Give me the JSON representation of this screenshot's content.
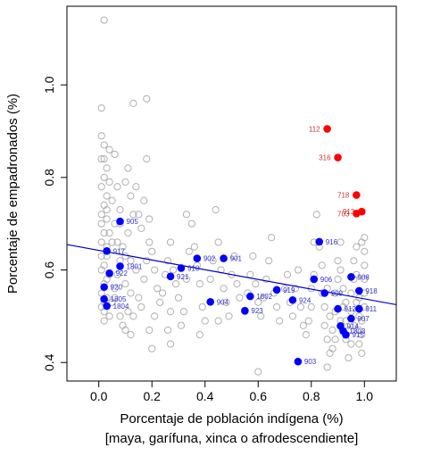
{
  "chart_data": {
    "type": "scatter",
    "xlabel": "Porcentaje de población indígena (%)",
    "xlabel2": "[maya, garífuna, xinca o afrodescendiente]",
    "ylabel": "Porcentaje de empadronados (%)",
    "xlim": [
      -0.12,
      1.12
    ],
    "ylim": [
      0.36,
      1.17
    ],
    "x_ticks": [
      0.0,
      0.2,
      0.4,
      0.6,
      0.8,
      1.0
    ],
    "x_tick_labels": [
      "0.0",
      "0.2",
      "0.4",
      "0.6",
      "0.8",
      "1.0"
    ],
    "y_ticks": [
      0.4,
      0.6,
      0.8,
      1.0
    ],
    "y_tick_labels": [
      "0.4",
      "0.6",
      "0.8",
      "1.0"
    ],
    "grid": false,
    "colors": {
      "background_points": "#b0b0b0",
      "highlight_blue": "#0000ff",
      "highlight_red": "#ff0000",
      "trend_line": "#0000cc",
      "label_blue": "#3333cc",
      "label_red": "#cc3333"
    },
    "trend_line": {
      "x1": -0.12,
      "y1": 0.655,
      "x2": 1.12,
      "y2": 0.525
    },
    "background_points": [
      [
        0.02,
        1.14
      ],
      [
        0.01,
        0.95
      ],
      [
        0.01,
        0.89
      ],
      [
        0.02,
        0.87
      ],
      [
        0.04,
        0.86
      ],
      [
        0.06,
        0.85
      ],
      [
        0.01,
        0.84
      ],
      [
        0.03,
        0.82
      ],
      [
        0.02,
        0.8
      ],
      [
        0.01,
        0.78
      ],
      [
        0.03,
        0.76
      ],
      [
        0.02,
        0.74
      ],
      [
        0.01,
        0.72
      ],
      [
        0.03,
        0.71
      ],
      [
        0.01,
        0.7
      ],
      [
        0.02,
        0.68
      ],
      [
        0.01,
        0.66
      ],
      [
        0.03,
        0.65
      ],
      [
        0.01,
        0.63
      ],
      [
        0.02,
        0.61
      ],
      [
        0.01,
        0.6
      ],
      [
        0.03,
        0.58
      ],
      [
        0.02,
        0.57
      ],
      [
        0.01,
        0.55
      ],
      [
        0.03,
        0.54
      ],
      [
        0.01,
        0.52
      ],
      [
        0.02,
        0.51
      ],
      [
        0.04,
        0.5
      ],
      [
        0.02,
        0.49
      ],
      [
        0.05,
        0.53
      ],
      [
        0.06,
        0.56
      ],
      [
        0.07,
        0.59
      ],
      [
        0.08,
        0.62
      ],
      [
        0.05,
        0.66
      ],
      [
        0.06,
        0.7
      ],
      [
        0.08,
        0.73
      ],
      [
        0.05,
        0.75
      ],
      [
        0.07,
        0.78
      ],
      [
        0.1,
        0.79
      ],
      [
        0.12,
        0.76
      ],
      [
        0.13,
        0.72
      ],
      [
        0.11,
        0.68
      ],
      [
        0.09,
        0.65
      ],
      [
        0.12,
        0.62
      ],
      [
        0.14,
        0.6
      ],
      [
        0.1,
        0.57
      ],
      [
        0.12,
        0.55
      ],
      [
        0.15,
        0.54
      ],
      [
        0.11,
        0.51
      ],
      [
        0.09,
        0.48
      ],
      [
        0.1,
        0.47
      ],
      [
        0.12,
        0.46
      ],
      [
        0.13,
        0.5
      ],
      [
        0.16,
        0.52
      ],
      [
        0.17,
        0.58
      ],
      [
        0.18,
        0.62
      ],
      [
        0.19,
        0.66
      ],
      [
        0.16,
        0.69
      ],
      [
        0.15,
        0.72
      ],
      [
        0.17,
        0.75
      ],
      [
        0.13,
        0.96
      ],
      [
        0.18,
        0.97
      ],
      [
        0.18,
        0.84
      ],
      [
        0.19,
        0.71
      ],
      [
        0.2,
        0.64
      ],
      [
        0.21,
        0.6
      ],
      [
        0.22,
        0.56
      ],
      [
        0.23,
        0.53
      ],
      [
        0.21,
        0.5
      ],
      [
        0.19,
        0.47
      ],
      [
        0.2,
        0.43
      ],
      [
        0.24,
        0.55
      ],
      [
        0.25,
        0.59
      ],
      [
        0.26,
        0.62
      ],
      [
        0.27,
        0.66
      ],
      [
        0.28,
        0.6
      ],
      [
        0.29,
        0.57
      ],
      [
        0.3,
        0.54
      ],
      [
        0.27,
        0.51
      ],
      [
        0.26,
        0.47
      ],
      [
        0.27,
        0.44
      ],
      [
        0.31,
        0.48
      ],
      [
        0.32,
        0.51
      ],
      [
        0.33,
        0.58
      ],
      [
        0.34,
        0.64
      ],
      [
        0.33,
        0.72
      ],
      [
        0.35,
        0.7
      ],
      [
        0.36,
        0.65
      ],
      [
        0.37,
        0.61
      ],
      [
        0.38,
        0.57
      ],
      [
        0.39,
        0.52
      ],
      [
        0.4,
        0.49
      ],
      [
        0.38,
        0.46
      ],
      [
        0.42,
        0.58
      ],
      [
        0.43,
        0.62
      ],
      [
        0.45,
        0.66
      ],
      [
        0.44,
        0.73
      ],
      [
        0.46,
        0.6
      ],
      [
        0.47,
        0.56
      ],
      [
        0.48,
        0.53
      ],
      [
        0.49,
        0.5
      ],
      [
        0.45,
        0.49
      ],
      [
        0.5,
        0.59
      ],
      [
        0.51,
        0.63
      ],
      [
        0.52,
        0.57
      ],
      [
        0.53,
        0.54
      ],
      [
        0.55,
        0.51
      ],
      [
        0.56,
        0.55
      ],
      [
        0.57,
        0.59
      ],
      [
        0.58,
        0.63
      ],
      [
        0.59,
        0.57
      ],
      [
        0.6,
        0.53
      ],
      [
        0.61,
        0.5
      ],
      [
        0.6,
        0.38
      ],
      [
        0.62,
        0.54
      ],
      [
        0.63,
        0.58
      ],
      [
        0.64,
        0.62
      ],
      [
        0.65,
        0.67
      ],
      [
        0.66,
        0.55
      ],
      [
        0.67,
        0.52
      ],
      [
        0.68,
        0.49
      ],
      [
        0.7,
        0.56
      ],
      [
        0.71,
        0.59
      ],
      [
        0.72,
        0.53
      ],
      [
        0.73,
        0.5
      ],
      [
        0.74,
        0.56
      ],
      [
        0.75,
        0.6
      ],
      [
        0.76,
        0.52
      ],
      [
        0.77,
        0.48
      ],
      [
        0.78,
        0.46
      ],
      [
        0.79,
        0.49
      ],
      [
        0.8,
        0.52
      ],
      [
        0.8,
        0.56
      ],
      [
        0.81,
        0.59
      ],
      [
        0.81,
        0.66
      ],
      [
        0.82,
        0.72
      ],
      [
        0.83,
        0.65
      ],
      [
        0.84,
        0.61
      ],
      [
        0.84,
        0.55
      ],
      [
        0.85,
        0.52
      ],
      [
        0.85,
        0.48
      ],
      [
        0.86,
        0.45
      ],
      [
        0.87,
        0.42
      ],
      [
        0.86,
        0.39
      ],
      [
        0.88,
        0.43
      ],
      [
        0.88,
        0.47
      ],
      [
        0.89,
        0.51
      ],
      [
        0.89,
        0.55
      ],
      [
        0.9,
        0.58
      ],
      [
        0.9,
        0.62
      ],
      [
        0.91,
        0.66
      ],
      [
        0.91,
        0.6
      ],
      [
        0.92,
        0.56
      ],
      [
        0.92,
        0.52
      ],
      [
        0.93,
        0.49
      ],
      [
        0.93,
        0.45
      ],
      [
        0.94,
        0.41
      ],
      [
        0.94,
        0.47
      ],
      [
        0.95,
        0.51
      ],
      [
        0.95,
        0.55
      ],
      [
        0.96,
        0.58
      ],
      [
        0.96,
        0.62
      ],
      [
        0.97,
        0.65
      ],
      [
        0.97,
        0.59
      ],
      [
        0.97,
        0.53
      ],
      [
        0.98,
        0.5
      ],
      [
        0.98,
        0.47
      ],
      [
        0.98,
        0.44
      ],
      [
        0.99,
        0.42
      ],
      [
        0.99,
        0.46
      ],
      [
        0.99,
        0.49
      ],
      [
        1.0,
        0.52
      ],
      [
        1.0,
        0.55
      ],
      [
        1.0,
        0.58
      ],
      [
        1.0,
        0.61
      ],
      [
        1.0,
        0.64
      ],
      [
        0.99,
        0.66
      ],
      [
        1.0,
        0.67
      ],
      [
        0.98,
        0.54
      ],
      [
        0.96,
        0.48
      ],
      [
        0.95,
        0.44
      ],
      [
        0.93,
        0.53
      ],
      [
        0.91,
        0.49
      ],
      [
        0.89,
        0.45
      ],
      [
        0.87,
        0.5
      ],
      [
        0.86,
        0.56
      ],
      [
        0.02,
        0.53
      ],
      [
        0.04,
        0.59
      ],
      [
        0.03,
        0.63
      ],
      [
        0.04,
        0.68
      ],
      [
        0.03,
        0.73
      ],
      [
        0.04,
        0.79
      ],
      [
        0.02,
        0.84
      ],
      [
        0.07,
        0.66
      ],
      [
        0.08,
        0.7
      ],
      [
        0.1,
        0.63
      ],
      [
        0.06,
        0.54
      ],
      [
        0.08,
        0.5
      ],
      [
        0.14,
        0.78
      ],
      [
        0.11,
        0.82
      ]
    ],
    "points": [
      {
        "label": "112",
        "x": 0.86,
        "y": 0.905,
        "color": "red"
      },
      {
        "label": "316",
        "x": 0.9,
        "y": 0.843,
        "color": "red"
      },
      {
        "label": "718",
        "x": 0.97,
        "y": 0.762,
        "color": "red"
      },
      {
        "label": "913",
        "x": 0.99,
        "y": 0.726,
        "color": "red"
      },
      {
        "label": "703",
        "x": 0.97,
        "y": 0.722,
        "color": "red"
      },
      {
        "label": "905",
        "x": 0.08,
        "y": 0.705,
        "color": "blue"
      },
      {
        "label": "917",
        "x": 0.03,
        "y": 0.641,
        "color": "blue"
      },
      {
        "label": "1801",
        "x": 0.08,
        "y": 0.608,
        "color": "blue"
      },
      {
        "label": "922",
        "x": 0.04,
        "y": 0.593,
        "color": "blue"
      },
      {
        "label": "920",
        "x": 0.02,
        "y": 0.563,
        "color": "blue"
      },
      {
        "label": "1805",
        "x": 0.02,
        "y": 0.537,
        "color": "blue"
      },
      {
        "label": "1804",
        "x": 0.03,
        "y": 0.522,
        "color": "blue"
      },
      {
        "label": "910",
        "x": 0.31,
        "y": 0.604,
        "color": "blue"
      },
      {
        "label": "902",
        "x": 0.37,
        "y": 0.625,
        "color": "blue"
      },
      {
        "label": "901",
        "x": 0.47,
        "y": 0.625,
        "color": "blue"
      },
      {
        "label": "921",
        "x": 0.27,
        "y": 0.586,
        "color": "blue"
      },
      {
        "label": "904",
        "x": 0.42,
        "y": 0.531,
        "color": "blue"
      },
      {
        "label": "923",
        "x": 0.55,
        "y": 0.512,
        "color": "blue"
      },
      {
        "label": "1802",
        "x": 0.57,
        "y": 0.543,
        "color": "blue"
      },
      {
        "label": "919",
        "x": 0.67,
        "y": 0.557,
        "color": "blue"
      },
      {
        "label": "924",
        "x": 0.73,
        "y": 0.535,
        "color": "blue"
      },
      {
        "label": "916",
        "x": 0.83,
        "y": 0.661,
        "color": "blue"
      },
      {
        "label": "906",
        "x": 0.81,
        "y": 0.58,
        "color": "blue"
      },
      {
        "label": "909",
        "x": 0.85,
        "y": 0.55,
        "color": "blue"
      },
      {
        "label": "908",
        "x": 0.95,
        "y": 0.585,
        "color": "blue"
      },
      {
        "label": "918",
        "x": 0.98,
        "y": 0.555,
        "color": "blue"
      },
      {
        "label": "911",
        "x": 0.98,
        "y": 0.516,
        "color": "blue"
      },
      {
        "label": "912",
        "x": 0.9,
        "y": 0.516,
        "color": "blue"
      },
      {
        "label": "907",
        "x": 0.95,
        "y": 0.495,
        "color": "blue"
      },
      {
        "label": "914",
        "x": 0.91,
        "y": 0.479,
        "color": "blue"
      },
      {
        "label": "1803",
        "x": 0.92,
        "y": 0.468,
        "color": "blue"
      },
      {
        "label": "915",
        "x": 0.93,
        "y": 0.46,
        "color": "blue"
      },
      {
        "label": "903",
        "x": 0.75,
        "y": 0.402,
        "color": "blue"
      }
    ]
  }
}
